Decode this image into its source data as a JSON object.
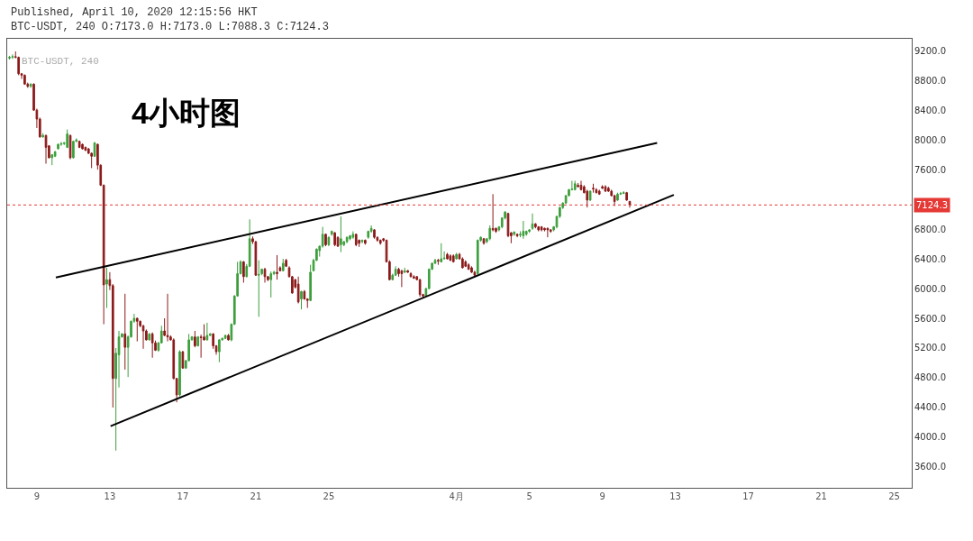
{
  "chart_data": {
    "type": "candlestick",
    "annotations": [
      "Published, April 10, 2020 12:15:56 HKT",
      "BTC-USDT, 240 O:7173.0 H:7173.0 L:7088.3 C:7124.3",
      "BTC-USDT, 240",
      "4小时图"
    ],
    "x": [
      "2020-03-07T12:00",
      "2020-03-07T16:00",
      "2020-03-07T20:00",
      "2020-03-08T00:00",
      "2020-03-08T04:00",
      "2020-03-08T08:00",
      "2020-03-08T12:00",
      "2020-03-08T16:00",
      "2020-03-08T20:00",
      "2020-03-09T00:00",
      "2020-03-09T04:00",
      "2020-03-09T08:00",
      "2020-03-09T12:00",
      "2020-03-09T16:00",
      "2020-03-09T20:00",
      "2020-03-10T00:00",
      "2020-03-10T04:00",
      "2020-03-10T08:00",
      "2020-03-10T12:00",
      "2020-03-10T16:00",
      "2020-03-10T20:00",
      "2020-03-11T00:00",
      "2020-03-11T04:00",
      "2020-03-11T08:00",
      "2020-03-11T12:00",
      "2020-03-11T16:00",
      "2020-03-11T20:00",
      "2020-03-12T00:00",
      "2020-03-12T04:00",
      "2020-03-12T08:00",
      "2020-03-12T12:00",
      "2020-03-12T16:00",
      "2020-03-12T20:00",
      "2020-03-13T00:00",
      "2020-03-13T04:00",
      "2020-03-13T08:00",
      "2020-03-13T12:00",
      "2020-03-13T16:00",
      "2020-03-13T20:00",
      "2020-03-14T00:00",
      "2020-03-14T04:00",
      "2020-03-14T08:00",
      "2020-03-14T12:00",
      "2020-03-14T16:00",
      "2020-03-14T20:00",
      "2020-03-15T00:00",
      "2020-03-15T04:00",
      "2020-03-15T08:00",
      "2020-03-15T12:00",
      "2020-03-15T16:00",
      "2020-03-15T20:00",
      "2020-03-16T00:00",
      "2020-03-16T04:00",
      "2020-03-16T08:00",
      "2020-03-16T12:00",
      "2020-03-16T16:00",
      "2020-03-16T20:00",
      "2020-03-17T00:00",
      "2020-03-17T04:00",
      "2020-03-17T08:00",
      "2020-03-17T12:00",
      "2020-03-17T16:00",
      "2020-03-17T20:00",
      "2020-03-18T00:00",
      "2020-03-18T04:00",
      "2020-03-18T08:00",
      "2020-03-18T12:00",
      "2020-03-18T16:00",
      "2020-03-18T20:00",
      "2020-03-19T00:00",
      "2020-03-19T04:00",
      "2020-03-19T08:00",
      "2020-03-19T12:00",
      "2020-03-19T16:00",
      "2020-03-19T20:00",
      "2020-03-20T00:00",
      "2020-03-20T04:00",
      "2020-03-20T08:00",
      "2020-03-20T12:00",
      "2020-03-20T16:00",
      "2020-03-20T20:00",
      "2020-03-21T00:00",
      "2020-03-21T04:00",
      "2020-03-21T08:00",
      "2020-03-21T12:00",
      "2020-03-21T16:00",
      "2020-03-21T20:00",
      "2020-03-22T00:00",
      "2020-03-22T04:00",
      "2020-03-22T08:00",
      "2020-03-22T12:00",
      "2020-03-22T16:00",
      "2020-03-22T20:00",
      "2020-03-23T00:00",
      "2020-03-23T04:00",
      "2020-03-23T08:00",
      "2020-03-23T12:00",
      "2020-03-23T16:00",
      "2020-03-23T20:00",
      "2020-03-24T00:00",
      "2020-03-24T04:00",
      "2020-03-24T08:00",
      "2020-03-24T12:00",
      "2020-03-24T16:00",
      "2020-03-24T20:00",
      "2020-03-25T00:00",
      "2020-03-25T04:00",
      "2020-03-25T08:00",
      "2020-03-25T12:00",
      "2020-03-25T16:00",
      "2020-03-25T20:00",
      "2020-03-26T00:00",
      "2020-03-26T04:00",
      "2020-03-26T08:00",
      "2020-03-26T12:00",
      "2020-03-26T16:00",
      "2020-03-26T20:00",
      "2020-03-27T00:00",
      "2020-03-27T04:00",
      "2020-03-27T08:00",
      "2020-03-27T12:00",
      "2020-03-27T16:00",
      "2020-03-27T20:00",
      "2020-03-28T00:00",
      "2020-03-28T04:00",
      "2020-03-28T08:00",
      "2020-03-28T12:00",
      "2020-03-28T16:00",
      "2020-03-28T20:00",
      "2020-03-29T00:00",
      "2020-03-29T04:00",
      "2020-03-29T08:00",
      "2020-03-29T12:00",
      "2020-03-29T16:00",
      "2020-03-29T20:00",
      "2020-03-30T00:00",
      "2020-03-30T04:00",
      "2020-03-30T08:00",
      "2020-03-30T12:00",
      "2020-03-30T16:00",
      "2020-03-30T20:00",
      "2020-03-31T00:00",
      "2020-03-31T04:00",
      "2020-03-31T08:00",
      "2020-03-31T12:00",
      "2020-03-31T16:00",
      "2020-03-31T20:00",
      "2020-04-01T00:00",
      "2020-04-01T04:00",
      "2020-04-01T08:00",
      "2020-04-01T12:00",
      "2020-04-01T16:00",
      "2020-04-01T20:00",
      "2020-04-02T00:00",
      "2020-04-02T04:00",
      "2020-04-02T08:00",
      "2020-04-02T12:00",
      "2020-04-02T16:00",
      "2020-04-02T20:00",
      "2020-04-03T00:00",
      "2020-04-03T04:00",
      "2020-04-03T08:00",
      "2020-04-03T12:00",
      "2020-04-03T16:00",
      "2020-04-03T20:00",
      "2020-04-04T00:00",
      "2020-04-04T04:00",
      "2020-04-04T08:00",
      "2020-04-04T12:00",
      "2020-04-04T16:00",
      "2020-04-04T20:00",
      "2020-04-05T00:00",
      "2020-04-05T04:00",
      "2020-04-05T08:00",
      "2020-04-05T12:00",
      "2020-04-05T16:00",
      "2020-04-05T20:00",
      "2020-04-06T00:00",
      "2020-04-06T04:00",
      "2020-04-06T08:00",
      "2020-04-06T12:00",
      "2020-04-06T16:00",
      "2020-04-06T20:00",
      "2020-04-07T00:00",
      "2020-04-07T04:00",
      "2020-04-07T08:00",
      "2020-04-07T12:00",
      "2020-04-07T16:00",
      "2020-04-07T20:00",
      "2020-04-08T00:00",
      "2020-04-08T04:00",
      "2020-04-08T08:00",
      "2020-04-08T12:00",
      "2020-04-08T16:00",
      "2020-04-08T20:00",
      "2020-04-09T00:00",
      "2020-04-09T04:00",
      "2020-04-09T08:00",
      "2020-04-09T12:00",
      "2020-04-09T16:00",
      "2020-04-09T20:00",
      "2020-04-10T00:00",
      "2020-04-10T04:00",
      "2020-04-10T08:00",
      "2020-04-10T12:00"
    ],
    "ohlc": [
      [
        9100,
        9130,
        9080,
        9110
      ],
      [
        9110,
        9150,
        9090,
        9120
      ],
      [
        9120,
        9190,
        9100,
        9110
      ],
      [
        9110,
        9120,
        8870,
        8890
      ],
      [
        8890,
        8900,
        8820,
        8870
      ],
      [
        8870,
        8880,
        8740,
        8750
      ],
      [
        8750,
        8770,
        8700,
        8720
      ],
      [
        8720,
        8760,
        8700,
        8750
      ],
      [
        8750,
        8760,
        8390,
        8400
      ],
      [
        8400,
        8420,
        8160,
        8280
      ],
      [
        8280,
        8300,
        8030,
        8040
      ],
      [
        8040,
        8090,
        8030,
        8060
      ],
      [
        8060,
        8070,
        7680,
        7900
      ],
      [
        7920,
        7930,
        7750,
        7760
      ],
      [
        7760,
        7810,
        7660,
        7800
      ],
      [
        7780,
        7850,
        7770,
        7840
      ],
      [
        7880,
        7950,
        7870,
        7940
      ],
      [
        7940,
        7970,
        7920,
        7950
      ],
      [
        7950,
        7970,
        7930,
        7960
      ],
      [
        7900,
        8140,
        7890,
        8080
      ],
      [
        8060,
        8070,
        7740,
        7760
      ],
      [
        7760,
        7990,
        7750,
        7980
      ],
      [
        7980,
        8020,
        7970,
        8000
      ],
      [
        7980,
        7990,
        7890,
        7900
      ],
      [
        7940,
        7950,
        7870,
        7880
      ],
      [
        7900,
        7910,
        7850,
        7860
      ],
      [
        7880,
        7890,
        7810,
        7820
      ],
      [
        7820,
        7830,
        7620,
        7780
      ],
      [
        7780,
        7970,
        7770,
        7960
      ],
      [
        7940,
        7950,
        7600,
        7660
      ],
      [
        7660,
        7670,
        7380,
        7390
      ],
      [
        7390,
        7400,
        5520,
        6050
      ],
      [
        6060,
        6280,
        5740,
        6120
      ],
      [
        6120,
        6220,
        5980,
        6040
      ],
      [
        6040,
        6060,
        4400,
        4790
      ],
      [
        4790,
        5200,
        3820,
        5130
      ],
      [
        5110,
        5430,
        4670,
        5350
      ],
      [
        5350,
        5400,
        5340,
        5390
      ],
      [
        5390,
        5930,
        4910,
        5210
      ],
      [
        5210,
        5370,
        4810,
        5350
      ],
      [
        5350,
        5570,
        5340,
        5560
      ],
      [
        5560,
        5660,
        5540,
        5600
      ],
      [
        5600,
        5610,
        5290,
        5560
      ],
      [
        5560,
        5570,
        5480,
        5500
      ],
      [
        5500,
        5510,
        5190,
        5430
      ],
      [
        5430,
        5450,
        5300,
        5310
      ],
      [
        5310,
        5400,
        5300,
        5390
      ],
      [
        5390,
        5410,
        5070,
        5270
      ],
      [
        5270,
        5300,
        5160,
        5170
      ],
      [
        5170,
        5280,
        5150,
        5270
      ],
      [
        5270,
        5500,
        5260,
        5430
      ],
      [
        5430,
        5600,
        5360,
        5370
      ],
      [
        5370,
        5930,
        5290,
        5350
      ],
      [
        5350,
        5370,
        5300,
        5310
      ],
      [
        5310,
        5330,
        4780,
        4790
      ],
      [
        4790,
        4800,
        4470,
        4570
      ],
      [
        4570,
        5170,
        4550,
        5150
      ],
      [
        5150,
        5160,
        4920,
        4930
      ],
      [
        4930,
        5040,
        4920,
        5030
      ],
      [
        5030,
        5390,
        5020,
        5310
      ],
      [
        5310,
        5360,
        5300,
        5350
      ],
      [
        5350,
        5430,
        5210,
        5230
      ],
      [
        5230,
        5360,
        5220,
        5350
      ],
      [
        5350,
        5380,
        5070,
        5340
      ],
      [
        5350,
        5520,
        5300,
        5310
      ],
      [
        5310,
        5540,
        5300,
        5370
      ],
      [
        5370,
        5400,
        5360,
        5390
      ],
      [
        5390,
        5400,
        5190,
        5230
      ],
      [
        5230,
        5240,
        5110,
        5150
      ],
      [
        5150,
        5320,
        5010,
        5310
      ],
      [
        5310,
        5340,
        5300,
        5330
      ],
      [
        5330,
        5380,
        5320,
        5370
      ],
      [
        5370,
        5390,
        5300,
        5310
      ],
      [
        5310,
        5530,
        5290,
        5520
      ],
      [
        5520,
        5910,
        5510,
        5900
      ],
      [
        5900,
        6360,
        5890,
        6200
      ],
      [
        6200,
        6380,
        6190,
        6360
      ],
      [
        6360,
        6370,
        6080,
        6160
      ],
      [
        6160,
        6330,
        6150,
        6300
      ],
      [
        6300,
        6930,
        6290,
        6670
      ],
      [
        6670,
        6700,
        6600,
        6630
      ],
      [
        6630,
        6640,
        6170,
        6180
      ],
      [
        6180,
        6380,
        5620,
        6190
      ],
      [
        6200,
        6270,
        6180,
        6260
      ],
      [
        6260,
        6280,
        6080,
        6160
      ],
      [
        6160,
        6170,
        6100,
        6120
      ],
      [
        6120,
        6230,
        5880,
        6200
      ],
      [
        6200,
        6240,
        6180,
        6220
      ],
      [
        6220,
        6450,
        6120,
        6200
      ],
      [
        6280,
        6300,
        6230,
        6240
      ],
      [
        6240,
        6400,
        6230,
        6340
      ],
      [
        6380,
        6400,
        6290,
        6300
      ],
      [
        6280,
        6300,
        6150,
        6160
      ],
      [
        6160,
        6170,
        5930,
        5940
      ],
      [
        6120,
        6130,
        6000,
        6020
      ],
      [
        6060,
        6160,
        5800,
        5820
      ],
      [
        5860,
        5970,
        5720,
        5960
      ],
      [
        5960,
        5980,
        5850,
        5860
      ],
      [
        5860,
        5870,
        5740,
        5840
      ],
      [
        5840,
        6320,
        5830,
        6220
      ],
      [
        6240,
        6400,
        6230,
        6380
      ],
      [
        6380,
        6540,
        6370,
        6530
      ],
      [
        6510,
        6580,
        6430,
        6570
      ],
      [
        6570,
        6830,
        6550,
        6730
      ],
      [
        6730,
        6740,
        6570,
        6590
      ],
      [
        6590,
        6700,
        6570,
        6690
      ],
      [
        6730,
        6780,
        6710,
        6770
      ],
      [
        6750,
        6760,
        6570,
        6590
      ],
      [
        6690,
        6700,
        6560,
        6570
      ],
      [
        6590,
        6970,
        6490,
        6670
      ],
      [
        6590,
        6640,
        6570,
        6630
      ],
      [
        6630,
        6700,
        6610,
        6690
      ],
      [
        6670,
        6720,
        6650,
        6710
      ],
      [
        6690,
        6770,
        6670,
        6730
      ],
      [
        6730,
        6740,
        6570,
        6590
      ],
      [
        6650,
        6660,
        6560,
        6610
      ],
      [
        6630,
        6660,
        6610,
        6650
      ],
      [
        6650,
        6660,
        6590,
        6610
      ],
      [
        6690,
        6780,
        6670,
        6770
      ],
      [
        6770,
        6850,
        6750,
        6810
      ],
      [
        6790,
        6800,
        6670,
        6690
      ],
      [
        6690,
        6700,
        6630,
        6650
      ],
      [
        6650,
        6660,
        6590,
        6610
      ],
      [
        6670,
        6680,
        6630,
        6650
      ],
      [
        6650,
        6660,
        6350,
        6360
      ],
      [
        6360,
        6380,
        6110,
        6120
      ],
      [
        6120,
        6200,
        6110,
        6180
      ],
      [
        6180,
        6300,
        6170,
        6260
      ],
      [
        6260,
        6280,
        6160,
        6200
      ],
      [
        6240,
        6250,
        6020,
        6200
      ],
      [
        6220,
        6280,
        6210,
        6240
      ],
      [
        6240,
        6250,
        6210,
        6220
      ],
      [
        6200,
        6220,
        6150,
        6160
      ],
      [
        6160,
        6180,
        6130,
        6140
      ],
      [
        6160,
        6170,
        6110,
        6120
      ],
      [
        6120,
        6130,
        5890,
        5920
      ],
      [
        5920,
        5930,
        5870,
        5900
      ],
      [
        5900,
        6010,
        5890,
        6000
      ],
      [
        6000,
        6270,
        5990,
        6260
      ],
      [
        6260,
        6350,
        6250,
        6340
      ],
      [
        6340,
        6400,
        6330,
        6380
      ],
      [
        6380,
        6400,
        6320,
        6370
      ],
      [
        6360,
        6610,
        6350,
        6400
      ],
      [
        6400,
        6500,
        6390,
        6410
      ],
      [
        6460,
        6480,
        6390,
        6400
      ],
      [
        6440,
        6460,
        6370,
        6380
      ],
      [
        6440,
        6460,
        6350,
        6360
      ],
      [
        6400,
        6480,
        6390,
        6460
      ],
      [
        6460,
        6480,
        6390,
        6400
      ],
      [
        6400,
        6420,
        6270,
        6280
      ],
      [
        6360,
        6380,
        6290,
        6300
      ],
      [
        6320,
        6340,
        6250,
        6260
      ],
      [
        6280,
        6300,
        6210,
        6220
      ],
      [
        6220,
        6240,
        6160,
        6180
      ],
      [
        6200,
        6660,
        6190,
        6650
      ],
      [
        6650,
        6700,
        6630,
        6690
      ],
      [
        6670,
        6680,
        6590,
        6610
      ],
      [
        6630,
        6680,
        6610,
        6670
      ],
      [
        6670,
        6850,
        6650,
        6810
      ],
      [
        6810,
        7270,
        6770,
        6790
      ],
      [
        6810,
        6820,
        6750,
        6770
      ],
      [
        6790,
        6840,
        6770,
        6830
      ],
      [
        6830,
        6960,
        6810,
        6950
      ],
      [
        6950,
        7040,
        6930,
        7030
      ],
      [
        7010,
        7020,
        6690,
        6710
      ],
      [
        6750,
        6760,
        6610,
        6710
      ],
      [
        6730,
        6770,
        6710,
        6760
      ],
      [
        6730,
        6740,
        6690,
        6710
      ],
      [
        6720,
        6770,
        6690,
        6730
      ],
      [
        6710,
        6910,
        6670,
        6770
      ],
      [
        6730,
        6780,
        6710,
        6770
      ],
      [
        6770,
        6800,
        6750,
        6790
      ],
      [
        6810,
        7010,
        6790,
        6870
      ],
      [
        6870,
        6880,
        6810,
        6830
      ],
      [
        6830,
        6840,
        6770,
        6790
      ],
      [
        6830,
        6840,
        6770,
        6790
      ],
      [
        6810,
        6820,
        6770,
        6790
      ],
      [
        6810,
        6820,
        6690,
        6790
      ],
      [
        6790,
        6800,
        6750,
        6770
      ],
      [
        6790,
        6840,
        6770,
        6830
      ],
      [
        6830,
        6980,
        6810,
        6970
      ],
      [
        6970,
        7100,
        6950,
        7090
      ],
      [
        7090,
        7160,
        7070,
        7150
      ],
      [
        7150,
        7260,
        7140,
        7250
      ],
      [
        7250,
        7340,
        7240,
        7330
      ],
      [
        7330,
        7450,
        7320,
        7340
      ],
      [
        7330,
        7450,
        7320,
        7410
      ],
      [
        7390,
        7420,
        7360,
        7370
      ],
      [
        7390,
        7450,
        7320,
        7330
      ],
      [
        7370,
        7390,
        7280,
        7290
      ],
      [
        7310,
        7330,
        7090,
        7190
      ],
      [
        7190,
        7320,
        7180,
        7310
      ],
      [
        7350,
        7410,
        7290,
        7340
      ],
      [
        7330,
        7350,
        7280,
        7290
      ],
      [
        7310,
        7330,
        7260,
        7270
      ],
      [
        7370,
        7390,
        7340,
        7350
      ],
      [
        7370,
        7390,
        7300,
        7310
      ],
      [
        7350,
        7370,
        7300,
        7310
      ],
      [
        7310,
        7330,
        7240,
        7250
      ],
      [
        7250,
        7260,
        7110,
        7170
      ],
      [
        7190,
        7290,
        7180,
        7270
      ],
      [
        7270,
        7300,
        7260,
        7280
      ],
      [
        7280,
        7310,
        7270,
        7290
      ],
      [
        7290,
        7300,
        7180,
        7190
      ],
      [
        7173,
        7173,
        7088.3,
        7124.3
      ]
    ],
    "colors": [
      "#3c9f3c",
      "#3c9f3c",
      "#8b1a1a",
      "#8b1a1a",
      "#8b1a1a",
      "#8b1a1a",
      "#8b1a1a",
      "#3c9f3c",
      "#8b1a1a",
      "#8b1a1a",
      "#8b1a1a",
      "#3c9f3c",
      "#8b1a1a",
      "#8b1a1a",
      "#3c9f3c",
      "#3c9f3c",
      "#3c9f3c",
      "#3c9f3c",
      "#3c9f3c",
      "#3c9f3c",
      "#8b1a1a",
      "#3c9f3c",
      "#3c9f3c",
      "#8b1a1a",
      "#8b1a1a",
      "#8b1a1a",
      "#8b1a1a",
      "#8b1a1a",
      "#3c9f3c",
      "#8b1a1a",
      "#8b1a1a",
      "#8b1a1a",
      "#3c9f3c",
      "#8b1a1a",
      "#8b1a1a",
      "#3c9f3c",
      "#3c9f3c",
      "#3c9f3c",
      "#8b1a1a",
      "#3c9f3c",
      "#3c9f3c",
      "#3c9f3c",
      "#8b1a1a",
      "#8b1a1a",
      "#8b1a1a",
      "#8b1a1a",
      "#3c9f3c",
      "#8b1a1a",
      "#8b1a1a",
      "#3c9f3c",
      "#3c9f3c",
      "#8b1a1a",
      "#8b1a1a",
      "#8b1a1a",
      "#8b1a1a",
      "#8b1a1a",
      "#3c9f3c",
      "#8b1a1a",
      "#3c9f3c",
      "#3c9f3c",
      "#3c9f3c",
      "#8b1a1a",
      "#3c9f3c",
      "#8b1a1a",
      "#8b1a1a",
      "#3c9f3c",
      "#3c9f3c",
      "#8b1a1a",
      "#8b1a1a",
      "#3c9f3c",
      "#3c9f3c",
      "#3c9f3c",
      "#8b1a1a",
      "#3c9f3c",
      "#3c9f3c",
      "#3c9f3c",
      "#3c9f3c",
      "#8b1a1a",
      "#3c9f3c",
      "#3c9f3c",
      "#8b1a1a",
      "#8b1a1a",
      "#3c9f3c",
      "#3c9f3c",
      "#8b1a1a",
      "#8b1a1a",
      "#3c9f3c",
      "#3c9f3c",
      "#8b1a1a",
      "#8b1a1a",
      "#3c9f3c",
      "#8b1a1a",
      "#8b1a1a",
      "#8b1a1a",
      "#8b1a1a",
      "#8b1a1a",
      "#3c9f3c",
      "#8b1a1a",
      "#8b1a1a",
      "#3c9f3c",
      "#3c9f3c",
      "#3c9f3c",
      "#3c9f3c",
      "#3c9f3c",
      "#8b1a1a",
      "#3c9f3c",
      "#3c9f3c",
      "#8b1a1a",
      "#8b1a1a",
      "#3c9f3c",
      "#3c9f3c",
      "#3c9f3c",
      "#3c9f3c",
      "#3c9f3c",
      "#8b1a1a",
      "#8b1a1a",
      "#3c9f3c",
      "#8b1a1a",
      "#3c9f3c",
      "#3c9f3c",
      "#8b1a1a",
      "#8b1a1a",
      "#8b1a1a",
      "#8b1a1a",
      "#8b1a1a",
      "#8b1a1a",
      "#3c9f3c",
      "#3c9f3c",
      "#8b1a1a",
      "#8b1a1a",
      "#3c9f3c",
      "#8b1a1a",
      "#8b1a1a",
      "#8b1a1a",
      "#8b1a1a",
      "#8b1a1a",
      "#8b1a1a",
      "#3c9f3c",
      "#3c9f3c",
      "#3c9f3c",
      "#3c9f3c",
      "#8b1a1a",
      "#3c9f3c",
      "#3c9f3c",
      "#8b1a1a",
      "#8b1a1a",
      "#8b1a1a",
      "#3c9f3c",
      "#8b1a1a",
      "#8b1a1a",
      "#8b1a1a",
      "#8b1a1a",
      "#8b1a1a",
      "#8b1a1a",
      "#3c9f3c",
      "#3c9f3c",
      "#8b1a1a",
      "#3c9f3c",
      "#3c9f3c",
      "#8b1a1a",
      "#8b1a1a",
      "#3c9f3c",
      "#3c9f3c",
      "#3c9f3c",
      "#8b1a1a",
      "#8b1a1a",
      "#3c9f3c",
      "#8b1a1a",
      "#3c9f3c",
      "#3c9f3c",
      "#3c9f3c",
      "#3c9f3c",
      "#3c9f3c",
      "#8b1a1a",
      "#8b1a1a",
      "#8b1a1a",
      "#8b1a1a",
      "#8b1a1a",
      "#8b1a1a",
      "#3c9f3c",
      "#3c9f3c",
      "#3c9f3c",
      "#3c9f3c",
      "#3c9f3c",
      "#3c9f3c",
      "#3c9f3c",
      "#3c9f3c",
      "#8b1a1a",
      "#8b1a1a",
      "#8b1a1a",
      "#8b1a1a",
      "#3c9f3c",
      "#8b1a1a",
      "#8b1a1a",
      "#8b1a1a",
      "#8b1a1a",
      "#8b1a1a",
      "#8b1a1a",
      "#8b1a1a",
      "#8b1a1a",
      "#3c9f3c",
      "#3c9f3c",
      "#3c9f3c",
      "#8b1a1a",
      "#8b1a1a"
    ],
    "series": [
      {
        "type": "line",
        "x": [
          "2020-03-10T01:00",
          "2020-04-12T00:00"
        ],
        "values": [
          6150,
          7960
        ],
        "color": "#000000"
      },
      {
        "type": "line",
        "x": [
          "2020-03-13T01:00",
          "2020-04-12T22:00"
        ],
        "values": [
          4150,
          7260
        ],
        "color": "#000000"
      }
    ],
    "xlim": [
      "2020-03-07T09:00",
      "2020-04-25T23:00"
    ],
    "xticks": [
      {
        "value": "2020-03-09",
        "label": "9"
      },
      {
        "value": "2020-03-13",
        "label": "13"
      },
      {
        "value": "2020-03-17",
        "label": "17"
      },
      {
        "value": "2020-03-21",
        "label": "21"
      },
      {
        "value": "2020-03-25",
        "label": "25"
      },
      {
        "value": "2020-04-01",
        "label": "4月"
      },
      {
        "value": "2020-04-05",
        "label": "5"
      },
      {
        "value": "2020-04-09",
        "label": "9"
      },
      {
        "value": "2020-04-13",
        "label": "13"
      },
      {
        "value": "2020-04-17",
        "label": "17"
      },
      {
        "value": "2020-04-21",
        "label": "21"
      },
      {
        "value": "2020-04-25",
        "label": "25"
      }
    ],
    "ylim": [
      3320,
      9360
    ],
    "yticks": [
      {
        "value": 3600,
        "label": "3600.0"
      },
      {
        "value": 4000,
        "label": "4000.0"
      },
      {
        "value": 4400,
        "label": "4400.0"
      },
      {
        "value": 4800,
        "label": "4800.0"
      },
      {
        "value": 5200,
        "label": "5200.0"
      },
      {
        "value": 5600,
        "label": "5600.0"
      },
      {
        "value": 6000,
        "label": "6000.0"
      },
      {
        "value": 6400,
        "label": "6400.0"
      },
      {
        "value": 6800,
        "label": "6800.0"
      },
      {
        "value": 7600,
        "label": "7600.0"
      },
      {
        "value": 8000,
        "label": "8000.0"
      },
      {
        "value": 8400,
        "label": "8400.0"
      },
      {
        "value": 8800,
        "label": "8800.0"
      },
      {
        "value": 9200,
        "label": "9200.0"
      }
    ],
    "ref_lines": [
      {
        "axis": "y",
        "value": 7124.3,
        "label": "7124.3",
        "color": "#e53935",
        "line_style": "dotted"
      }
    ]
  }
}
